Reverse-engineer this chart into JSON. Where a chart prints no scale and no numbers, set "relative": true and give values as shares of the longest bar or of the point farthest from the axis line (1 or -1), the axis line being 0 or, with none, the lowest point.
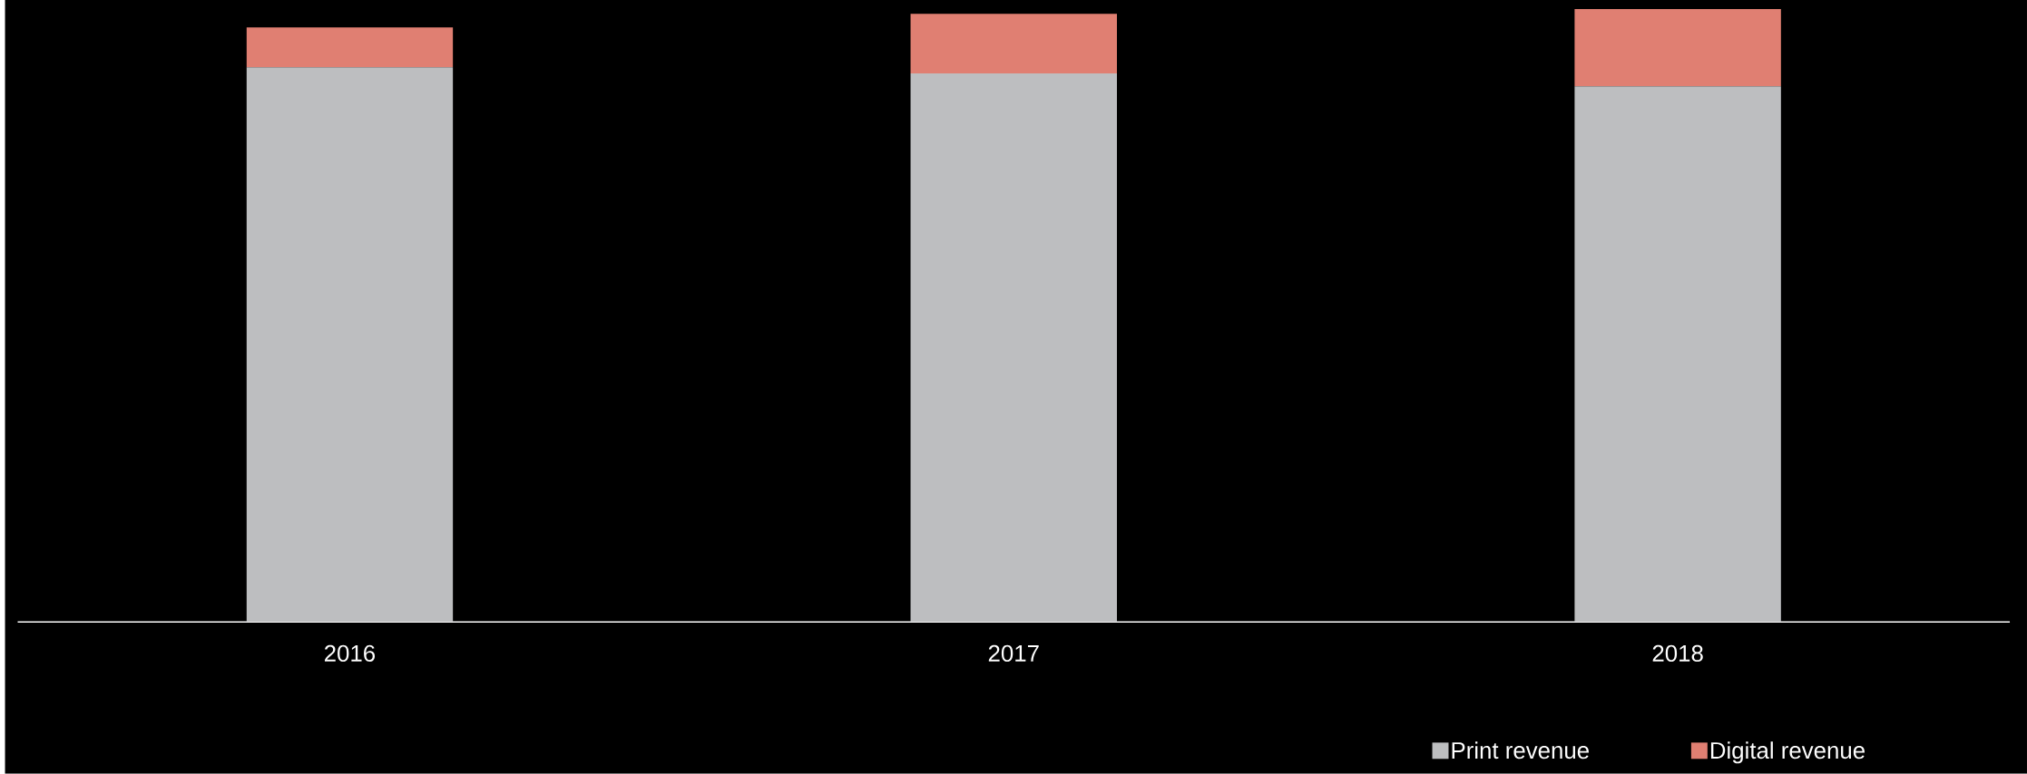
{
  "chart_data": {
    "type": "bar",
    "stacked": true,
    "relative": true,
    "categories": [
      "2016",
      "2017",
      "2018"
    ],
    "series": [
      {
        "name": "Print revenue",
        "color": "#bdbec0",
        "values": [
          0.905,
          0.895,
          0.874
        ]
      },
      {
        "name": "Digital revenue",
        "color": "#e07f72",
        "values": [
          0.065,
          0.097,
          0.126
        ]
      }
    ],
    "legend": "bottom right"
  }
}
